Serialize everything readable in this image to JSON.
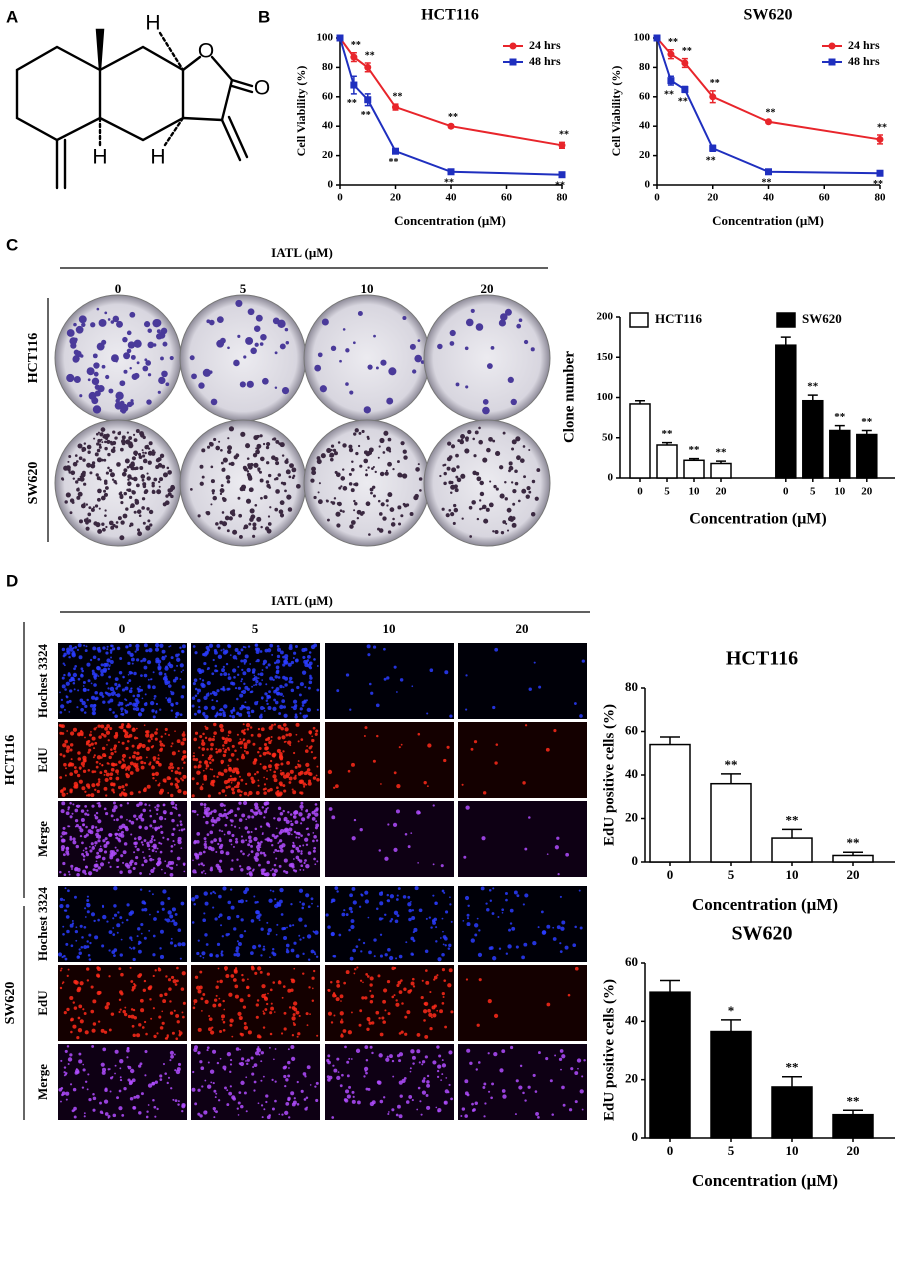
{
  "panel_labels": [
    "A",
    "B",
    "C",
    "D"
  ],
  "structure": {
    "atoms": [
      "H",
      "O",
      "O",
      "H",
      "H"
    ]
  },
  "panel_c": {
    "header": "IATL (μM)",
    "columns": [
      "0",
      "5",
      "10",
      "20"
    ],
    "rows": [
      "HCT116",
      "SW620"
    ]
  },
  "panel_d": {
    "header": "IATL (μM)",
    "columns": [
      "0",
      "5",
      "10",
      "20"
    ],
    "groups": [
      "HCT116",
      "SW620"
    ],
    "rows": [
      "Hochest 3324",
      "EdU",
      "Merge"
    ]
  },
  "chart_data": [
    {
      "type": "line",
      "title": "HCT116",
      "x_label": "Concentration (μM)",
      "y_label": "Cell Viability (%)",
      "x": [
        0,
        5,
        10,
        20,
        40,
        80
      ],
      "xlim": [
        0,
        80
      ],
      "xticks": [
        0,
        20,
        40,
        60,
        80
      ],
      "ylim": [
        0,
        100
      ],
      "yticks": [
        0,
        20,
        40,
        60,
        80,
        100
      ],
      "series": [
        {
          "name": "24 hrs",
          "color": "#e8252b",
          "marker": "circle",
          "values": [
            100,
            87,
            80,
            53,
            40,
            27
          ],
          "errors": [
            0,
            3,
            3,
            2,
            1,
            2
          ],
          "labels": [
            null,
            "**",
            "**",
            "**",
            "**",
            "**"
          ]
        },
        {
          "name": "48 hrs",
          "color": "#1f2fbf",
          "marker": "square",
          "values": [
            100,
            68,
            58,
            23,
            9,
            7
          ],
          "errors": [
            0,
            6,
            4,
            1,
            1,
            1
          ],
          "labels": [
            null,
            "**",
            "**",
            "**",
            "**",
            "**"
          ]
        }
      ]
    },
    {
      "type": "line",
      "title": "SW620",
      "x_label": "Concentration (μM)",
      "y_label": "Cell Viability (%)",
      "x": [
        0,
        5,
        10,
        20,
        40,
        80
      ],
      "xlim": [
        0,
        80
      ],
      "xticks": [
        0,
        20,
        40,
        60,
        80
      ],
      "ylim": [
        0,
        100
      ],
      "yticks": [
        0,
        20,
        40,
        60,
        80,
        100
      ],
      "series": [
        {
          "name": "24 hrs",
          "color": "#e8252b",
          "marker": "circle",
          "values": [
            100,
            89,
            83,
            60,
            43,
            31
          ],
          "errors": [
            0,
            3,
            3,
            4,
            1,
            3
          ],
          "labels": [
            null,
            "**",
            "**",
            "**",
            "**",
            "**"
          ]
        },
        {
          "name": "48 hrs",
          "color": "#1f2fbf",
          "marker": "square",
          "values": [
            100,
            71,
            65,
            25,
            9,
            8
          ],
          "errors": [
            0,
            3,
            2,
            2,
            1,
            1
          ],
          "labels": [
            null,
            "**",
            "**",
            "**",
            "**",
            "**"
          ]
        }
      ]
    },
    {
      "type": "bar",
      "x_label": "Concentration (μM)",
      "y_label": "Clone number",
      "categories": [
        "0",
        "5",
        "10",
        "20"
      ],
      "ylim": [
        0,
        200
      ],
      "yticks": [
        0,
        50,
        100,
        150,
        200
      ],
      "series": [
        {
          "name": "HCT116",
          "color": "#ffffff",
          "values": [
            92,
            41,
            22,
            18
          ],
          "errors": [
            4,
            3,
            2,
            3
          ],
          "labels": [
            null,
            "**",
            "**",
            "**"
          ]
        },
        {
          "name": "SW620",
          "color": "#000000",
          "values": [
            165,
            96,
            59,
            54
          ],
          "errors": [
            10,
            7,
            6,
            5
          ],
          "labels": [
            null,
            "**",
            "**",
            "**"
          ]
        }
      ]
    },
    {
      "type": "bar",
      "title": "HCT116",
      "x_label": "Concentration (μM)",
      "y_label": "EdU positive cells (%)",
      "categories": [
        "0",
        "5",
        "10",
        "20"
      ],
      "ylim": [
        0,
        80
      ],
      "yticks": [
        0,
        20,
        40,
        60,
        80
      ],
      "series": [
        {
          "color": "#ffffff",
          "values": [
            54,
            36,
            11,
            3
          ],
          "errors": [
            3.5,
            4.5,
            4,
            1.5
          ],
          "labels": [
            null,
            "**",
            "**",
            "**"
          ]
        }
      ]
    },
    {
      "type": "bar",
      "title": "SW620",
      "x_label": "Concentration (μM)",
      "y_label": "EdU positive cells (%)",
      "categories": [
        "0",
        "5",
        "10",
        "20"
      ],
      "ylim": [
        0,
        60
      ],
      "yticks": [
        0,
        20,
        40,
        60
      ],
      "series": [
        {
          "color": "#000000",
          "values": [
            50,
            36.5,
            17.5,
            8
          ],
          "errors": [
            4,
            4,
            3.5,
            1.5
          ],
          "labels": [
            null,
            "*",
            "**",
            "**"
          ]
        }
      ]
    }
  ]
}
